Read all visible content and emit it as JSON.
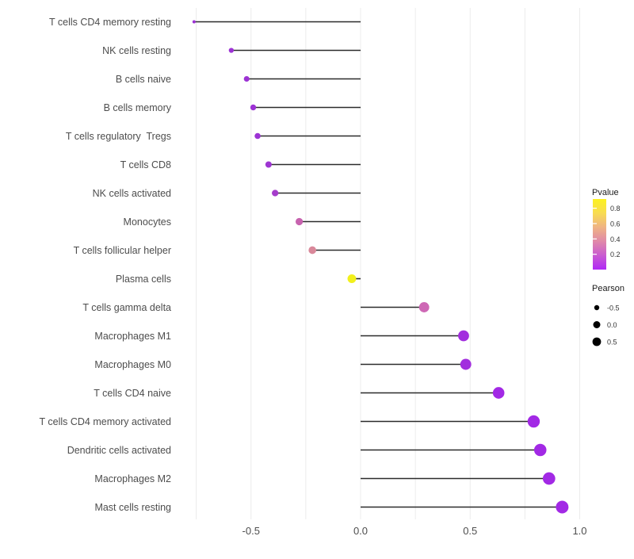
{
  "chart_data": {
    "type": "lollipop",
    "title": "",
    "xlabel": "",
    "ylabel": "",
    "x_axis": {
      "ticks": [
        -0.5,
        0.0,
        0.5,
        1.0
      ],
      "tick_labels": [
        "-0.5",
        "0.0",
        "0.5",
        "1.0"
      ],
      "range": [
        -0.84,
        1.11
      ],
      "gridlines": [
        -0.75,
        -0.5,
        -0.25,
        0.0,
        0.25,
        0.5,
        0.75,
        1.0
      ],
      "grid_on": true
    },
    "points": [
      {
        "label": "T cells CD4 memory resting",
        "pearson": -0.76,
        "pvalue": 0.06,
        "color": "#9C32D4"
      },
      {
        "label": "NK cells resting",
        "pearson": -0.59,
        "pvalue": 0.08,
        "color": "#9C32D4"
      },
      {
        "label": "B cells naive",
        "pearson": -0.52,
        "pvalue": 0.08,
        "color": "#9C32D4"
      },
      {
        "label": "B cells memory",
        "pearson": -0.49,
        "pvalue": 0.08,
        "color": "#9C32D4"
      },
      {
        "label": "T cells regulatory  Tregs",
        "pearson": -0.47,
        "pvalue": 0.08,
        "color": "#9C32D4"
      },
      {
        "label": "T cells CD8",
        "pearson": -0.42,
        "pvalue": 0.09,
        "color": "#9E35D2"
      },
      {
        "label": "NK cells activated",
        "pearson": -0.39,
        "pvalue": 0.12,
        "color": "#A53CCB"
      },
      {
        "label": "Monocytes",
        "pearson": -0.28,
        "pvalue": 0.28,
        "color": "#C763AF"
      },
      {
        "label": "T cells follicular helper",
        "pearson": -0.22,
        "pvalue": 0.42,
        "color": "#D9889A"
      },
      {
        "label": "Plasma cells",
        "pearson": -0.04,
        "pvalue": 0.88,
        "color": "#F2F01C"
      },
      {
        "label": "T cells gamma delta",
        "pearson": 0.29,
        "pvalue": 0.3,
        "color": "#CE68B5"
      },
      {
        "label": "Macrophages M1",
        "pearson": 0.47,
        "pvalue": 0.04,
        "color": "#A22EDE"
      },
      {
        "label": "Macrophages M0",
        "pearson": 0.48,
        "pvalue": 0.04,
        "color": "#A22EDE"
      },
      {
        "label": "T cells CD4 naive",
        "pearson": 0.63,
        "pvalue": 0.03,
        "color": "#A229E5"
      },
      {
        "label": "T cells CD4 memory activated",
        "pearson": 0.79,
        "pvalue": 0.02,
        "color": "#A229E5"
      },
      {
        "label": "Dendritic cells activated",
        "pearson": 0.82,
        "pvalue": 0.02,
        "color": "#A229E5"
      },
      {
        "label": "Macrophages M2",
        "pearson": 0.86,
        "pvalue": 0.01,
        "color": "#A229E5"
      },
      {
        "label": "Mast cells resting",
        "pearson": 0.92,
        "pvalue": 0.01,
        "color": "#A229E5"
      }
    ],
    "legend": {
      "pvalue": {
        "title": "Pvalue",
        "tick_values": [
          0.8,
          0.6,
          0.4,
          0.2
        ],
        "tick_labels": [
          "0.8",
          "0.6",
          "0.4",
          "0.2"
        ],
        "bar_range": [
          0.0,
          0.92
        ],
        "gradient_top_to_bottom": [
          "#FCF21F",
          "#F8DC52",
          "#EFB384",
          "#E089A9",
          "#C95BD1",
          "#B028F6"
        ]
      },
      "pearson": {
        "title": "Pearson",
        "items": [
          {
            "label": "-0.5",
            "value": -0.5
          },
          {
            "label": "0.0",
            "value": 0.0
          },
          {
            "label": "0.5",
            "value": 0.5
          }
        ],
        "dot_color": "#000000"
      }
    },
    "colors": {
      "stem": "#2B2B2B",
      "grid": "#ECECEC",
      "axis_text": "#4D4D4D",
      "legend_title_text": "#1A1A1A",
      "legend_label_text": "#333333",
      "background": "#FFFFFF"
    }
  }
}
